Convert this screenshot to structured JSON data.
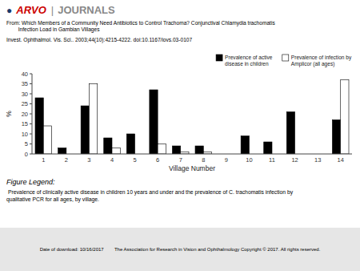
{
  "chart_data": {
    "type": "bar",
    "categories": [
      "1",
      "2",
      "3",
      "4",
      "5",
      "6",
      "7",
      "8",
      "9",
      "10",
      "11",
      "12",
      "13",
      "14"
    ],
    "series": [
      {
        "name": "Prevalence of active\ndisease in children",
        "color": "#000000",
        "values": [
          28,
          3,
          24,
          8,
          10,
          32,
          4,
          4,
          0,
          9,
          6,
          21,
          0,
          17
        ]
      },
      {
        "name": "Prevalence of infection by\nAmplicor (all ages)",
        "color": "#ffffff",
        "values": [
          14,
          0,
          35,
          3,
          0,
          5,
          1,
          1,
          0,
          0,
          0,
          0,
          0,
          37
        ]
      }
    ],
    "x_label": "Village Number",
    "y_label": "%",
    "ylim": [
      0,
      40
    ],
    "yticks": [
      0,
      5,
      10,
      15,
      20,
      25,
      30,
      35,
      40
    ],
    "grid": false,
    "legend": "upper right",
    "annotations": [
      {
        "text": "●",
        "color": "#1a3a6b"
      },
      {
        "text": "ARVO",
        "color": "#cc0000"
      },
      {
        "text": "|",
        "color": "#888888"
      },
      {
        "text": "JOURNALS",
        "color": "#888888"
      },
      {
        "text": "From: Which Members of a Community Need Antibiotics to Control Trachoma? Conjunctival Chlamydia trachomatis\n        Infection Load in Gambian Villages"
      },
      {
        "text": "Invest. Ophthalmol. Vis. Sci.. 2003;44(10):4215-4222. doi:10.1167/iovs.03-0107"
      },
      {
        "text": "Figure Legend:"
      },
      {
        "text": " Prevalence of clinically active disease in children 10 years and under and the prevalence of C. trachomatis infection by\nqualitative PCR for all ages, by village."
      },
      {
        "text": "Date of download: 10/16/2017        The Association for Research in Vision and Ophthalmology Copyright © 2017. All rights reserved."
      }
    ]
  }
}
